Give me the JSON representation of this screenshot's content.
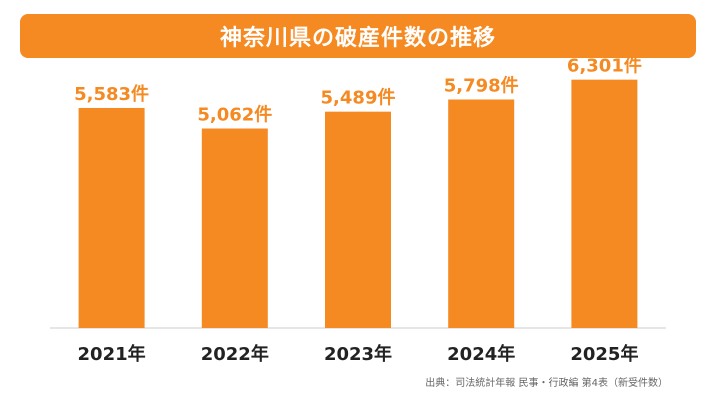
{
  "title": "神奈川県の破産件数の推移",
  "source": "出典：司法統計年報 民事・行政編 第4表（新受件数）",
  "colors": {
    "bar": "#f58a22",
    "title_bg": "#f58a22",
    "value_label": "#f58a22",
    "axis": "#cccccc",
    "category_label": "#222222"
  },
  "chart_data": {
    "type": "bar",
    "title": "神奈川県の破産件数の推移",
    "categories": [
      "2021年",
      "2022年",
      "2023年",
      "2024年",
      "2025年"
    ],
    "values": [
      5583,
      5062,
      5489,
      5798,
      6301
    ],
    "value_labels": [
      "5,583件",
      "5,062件",
      "5,489件",
      "5,798件",
      "6,301件"
    ],
    "xlabel": "",
    "ylabel": "",
    "ylim": [
      0,
      6800
    ],
    "grid": false,
    "legend": "none"
  }
}
